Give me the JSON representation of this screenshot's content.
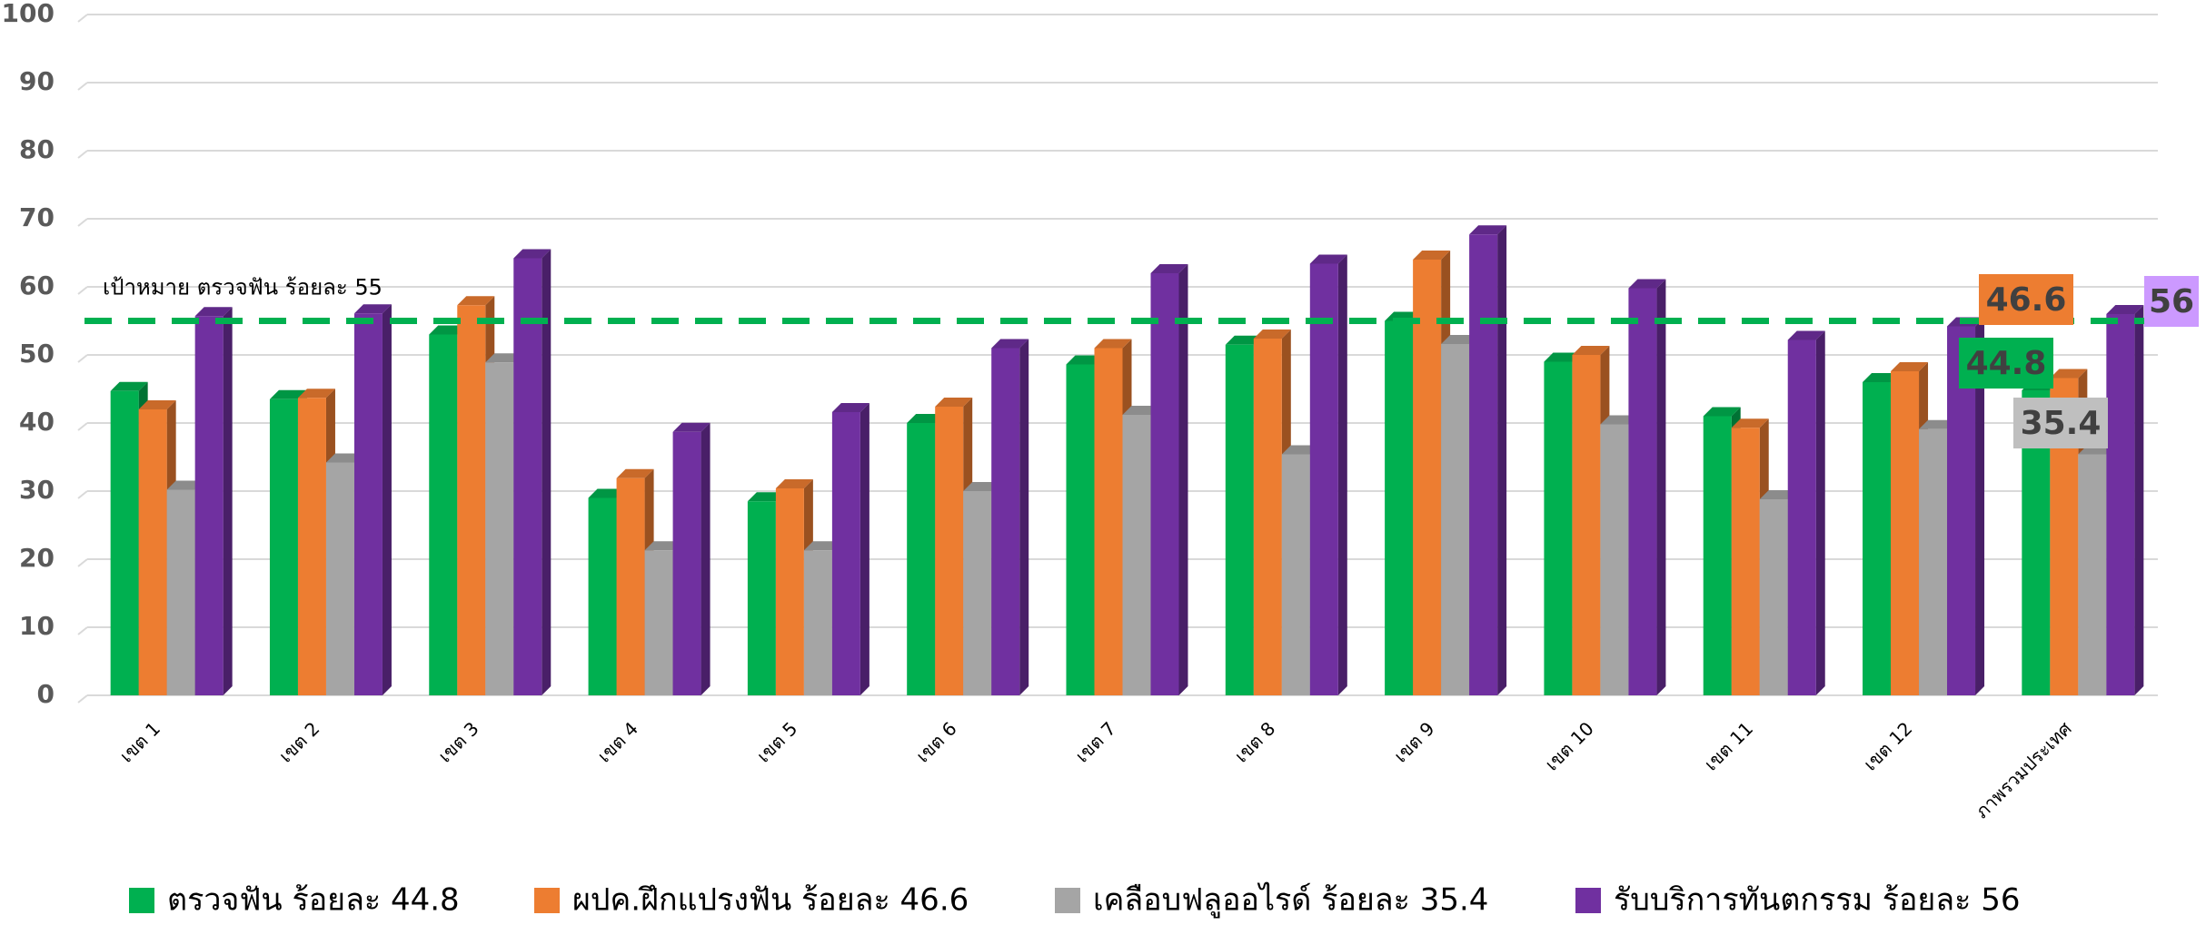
{
  "chart_data": {
    "type": "bar3d",
    "categories": [
      "เขต 1",
      "เขต 2",
      "เขต 3",
      "เขต 4",
      "เขต 5",
      "เขต 6",
      "เขต 7",
      "เขต 8",
      "เขต 9",
      "เขต 10",
      "เขต 11",
      "เขต 12",
      "ภาพรวมประเทศ"
    ],
    "series": [
      {
        "name": "ตรวจฟัน ร้อยละ 44.8",
        "color": "#00b050",
        "label_color": "#00b050",
        "values": [
          44.7,
          43.5,
          53,
          29,
          28.5,
          40,
          48.6,
          51.5,
          55,
          49,
          41,
          46,
          44.8
        ]
      },
      {
        "name": "ผปค.ฝึกแปรงฟัน ร้อยละ 46.6",
        "color": "#ed7d31",
        "label_color": "#ed7d31",
        "values": [
          42,
          43.7,
          57.3,
          31.9,
          30.4,
          42.4,
          51,
          52.4,
          64,
          50,
          39.3,
          47.6,
          46.6
        ]
      },
      {
        "name": "เคลือบฟลูออไรด์ ร้อยละ 35.4",
        "color": "#a5a5a5",
        "label_color": "#bfbfbf",
        "values": [
          30.2,
          34.2,
          48.9,
          21.3,
          21.3,
          30,
          41.2,
          35.4,
          51.6,
          39.8,
          28.8,
          39.1,
          35.4
        ]
      },
      {
        "name": "รับบริการทันตกรรม ร้อยละ  56",
        "color": "#7030a0",
        "label_color": "#cc99ff",
        "values": [
          55.7,
          56.1,
          64.2,
          38.7,
          41.6,
          51,
          62,
          63.4,
          67.7,
          59.8,
          52.2,
          54.2,
          56
        ]
      }
    ],
    "target": {
      "label": "เป้าหมาย ตรวจฟัน ร้อยละ 55",
      "value": 55,
      "color": "#00b050"
    },
    "ylim": [
      0,
      100
    ],
    "yticks": [
      0,
      10,
      20,
      30,
      40,
      50,
      60,
      70,
      80,
      90,
      100
    ],
    "grid": true
  }
}
